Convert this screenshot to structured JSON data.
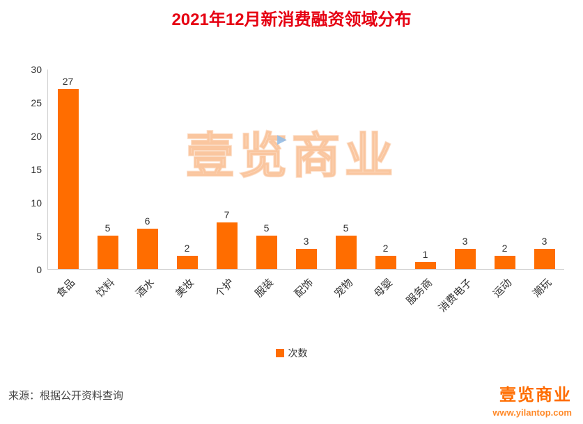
{
  "title": "2021年12月新消费融资领域分布",
  "chart_data": {
    "type": "bar",
    "title": "2021年12月新消费融资领域分布",
    "categories": [
      "食品",
      "饮料",
      "酒水",
      "美妆",
      "个护",
      "服装",
      "配饰",
      "宠物",
      "母婴",
      "服务商",
      "消费电子",
      "运动",
      "潮玩"
    ],
    "values": [
      27,
      5,
      6,
      2,
      7,
      5,
      3,
      5,
      2,
      1,
      3,
      2,
      3
    ],
    "xlabel": "",
    "ylabel": "",
    "ylim": [
      0,
      30
    ],
    "yticks": [
      0,
      5,
      10,
      15,
      20,
      25,
      30
    ],
    "grid": false,
    "legend": "次数",
    "legend_position": "bottom",
    "bar_color": "#ff6d00"
  },
  "watermark": "壹览商业",
  "watermark_icon": "▶",
  "footer": {
    "source": "来源：根据公开资料查询"
  },
  "logo": {
    "text": "壹览商业",
    "url": "www.yilantop.com"
  },
  "colors": {
    "title_red": "#e60012",
    "accent_orange": "#ff6d00"
  }
}
